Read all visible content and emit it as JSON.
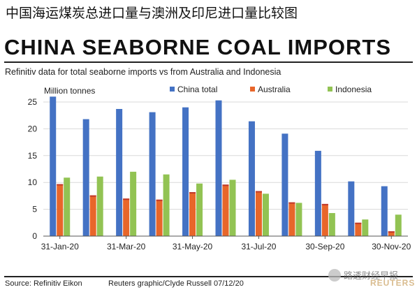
{
  "header": {
    "title_cn": "中国海运煤炭总进口量与澳洲及印尼进口量比较图",
    "title_en": "CHINA SEABORNE COAL IMPORTS",
    "subtitle": "Refinitiv data for total seaborne imports vs from Australia and Indonesia"
  },
  "footer": {
    "source": "Source: Refinitiv Eikon",
    "credit": "Reuters graphic/Clyde Russell 07/12/20"
  },
  "watermark": {
    "text": "路透财经早报",
    "icon": "wechat-icon",
    "logo_text": "REUTERS"
  },
  "chart_data": {
    "type": "bar",
    "ylabel": "Million tonnes",
    "ylim": [
      0,
      25
    ],
    "yticks": [
      0,
      5,
      10,
      15,
      20,
      25
    ],
    "grid": true,
    "legend_position": "top",
    "categories": [
      "Jan-20",
      "Feb-20",
      "Mar-20",
      "Apr-20",
      "May-20",
      "Jun-20",
      "Jul-20",
      "Aug-20",
      "Sep-20",
      "Oct-20",
      "Nov-20"
    ],
    "xtick_labels": [
      "31-Jan-20",
      "31-Mar-20",
      "31-May-20",
      "31-Jul-20",
      "30-Sep-20",
      "30-Nov-20"
    ],
    "series": [
      {
        "name": "China total",
        "color": "#4472c4",
        "values": [
          26.0,
          21.8,
          23.7,
          23.1,
          24.0,
          25.3,
          21.4,
          19.1,
          15.9,
          10.2,
          9.3
        ]
      },
      {
        "name": "Australia",
        "color": "#e8662a",
        "values": [
          9.7,
          7.6,
          7.0,
          6.8,
          8.2,
          9.6,
          8.4,
          6.3,
          6.0,
          2.5,
          0.9
        ]
      },
      {
        "name": "Indonesia",
        "color": "#92c353",
        "values": [
          10.9,
          11.1,
          12.0,
          11.5,
          9.8,
          10.5,
          7.9,
          6.2,
          4.3,
          3.1,
          4.0
        ]
      }
    ]
  }
}
